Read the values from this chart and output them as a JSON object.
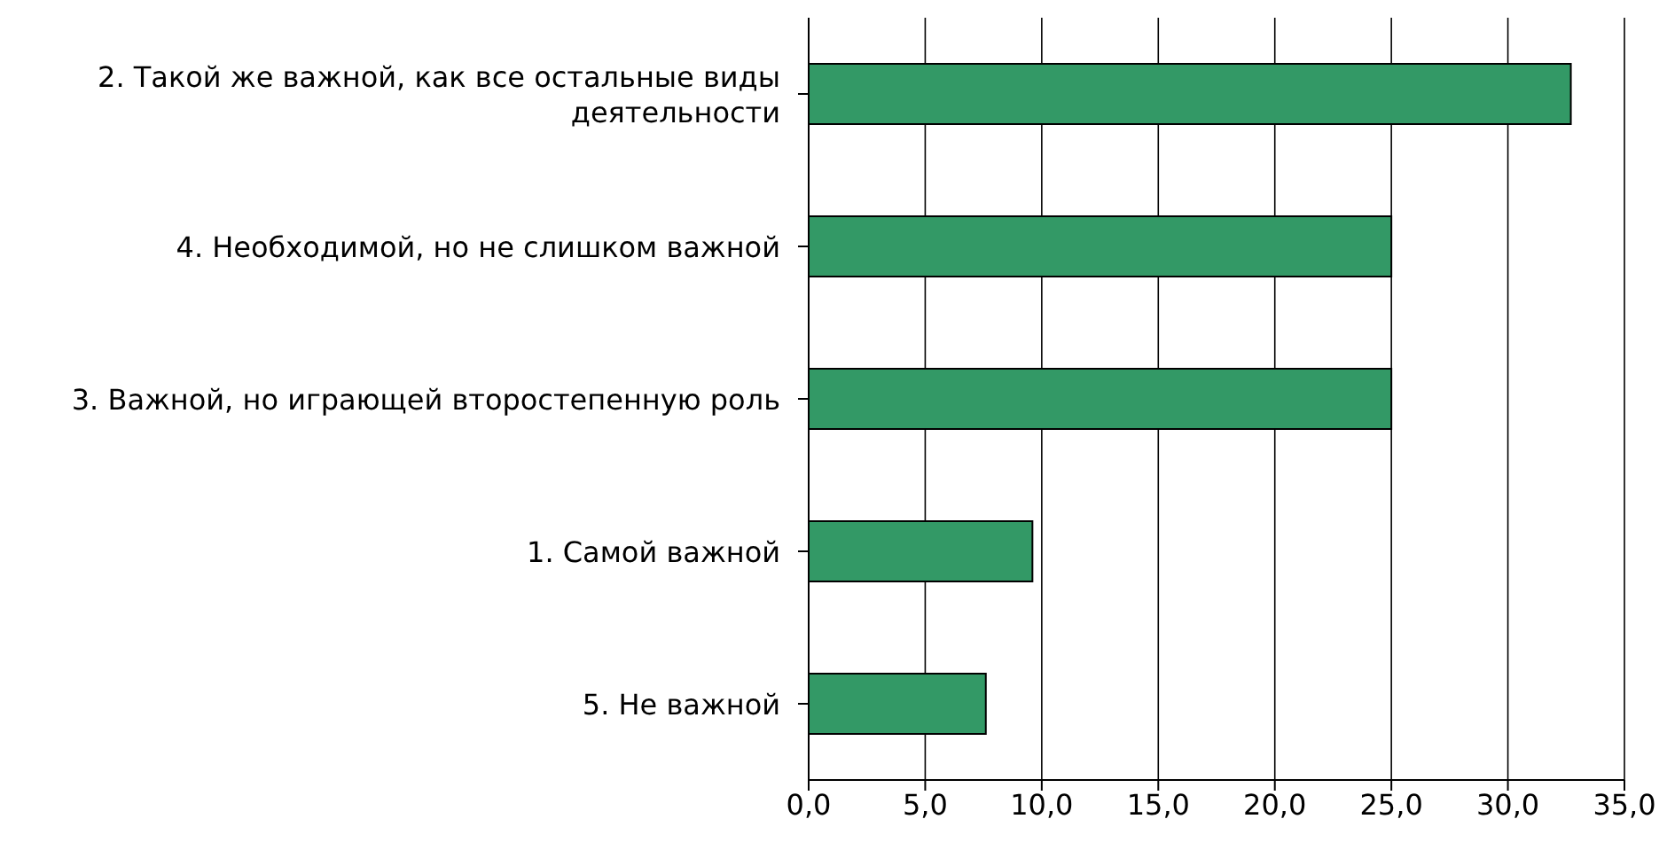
{
  "chart_data": {
    "type": "bar",
    "orientation": "horizontal",
    "categories": [
      "2. Такой же важной, как все остальные виды деятельности",
      "4. Необходимой, но не слишком важной",
      "3. Важной, но играющей второстепенную роль",
      "1. Самой важной",
      "5. Не важной"
    ],
    "values": [
      32.7,
      25.0,
      25.0,
      9.6,
      7.6
    ],
    "color": "#339966",
    "xlim": [
      0,
      35
    ],
    "xticks": [
      {
        "value": 0,
        "label": "0,0"
      },
      {
        "value": 5,
        "label": "5,0"
      },
      {
        "value": 10,
        "label": "10,0"
      },
      {
        "value": 15,
        "label": "15,0"
      },
      {
        "value": 20,
        "label": "20,0"
      },
      {
        "value": 25,
        "label": "25,0"
      },
      {
        "value": 30,
        "label": "30,0"
      },
      {
        "value": 35,
        "label": "35,0"
      }
    ],
    "grid": "x"
  }
}
